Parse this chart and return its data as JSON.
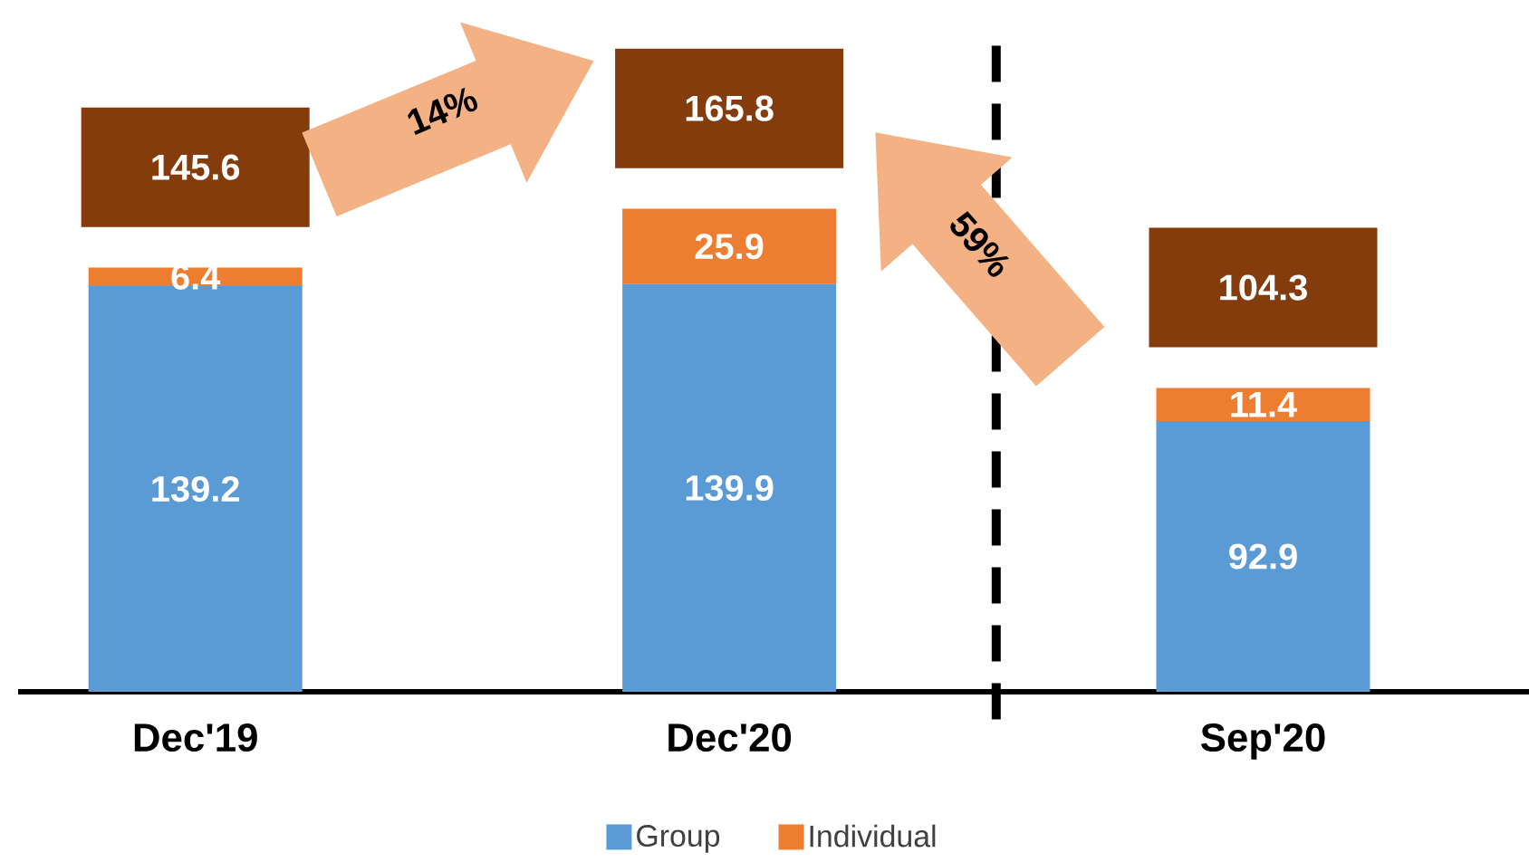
{
  "chart_data": {
    "type": "bar",
    "stacked": true,
    "categories": [
      "Dec'19",
      "Dec'20",
      "Sep'20"
    ],
    "series": [
      {
        "name": "Group",
        "color": "#5b9bd5",
        "values": [
          139.2,
          139.9,
          92.9
        ]
      },
      {
        "name": "Individual",
        "color": "#ed7d31",
        "values": [
          6.4,
          25.9,
          11.4
        ]
      }
    ],
    "data_labels": true,
    "totals": [
      "145.6",
      "165.8",
      "104.3"
    ],
    "legend": "bottom",
    "annotations": [
      "14%",
      "59%"
    ]
  }
}
